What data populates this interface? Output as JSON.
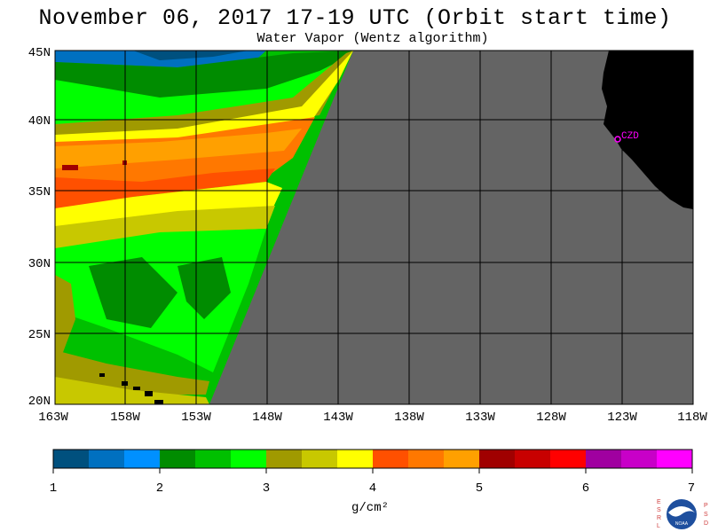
{
  "header": {
    "title": "November 06, 2017  17-19 UTC  (Orbit start time)",
    "subtitle": "Water Vapor (Wentz algorithm)"
  },
  "map": {
    "lat_labels": [
      "45N",
      "40N",
      "35N",
      "30N",
      "25N",
      "20N"
    ],
    "lon_labels": [
      "163W",
      "158W",
      "153W",
      "148W",
      "143W",
      "138W",
      "133W",
      "128W",
      "123W",
      "118W"
    ],
    "station_label": "CZD",
    "station_color": "#ff00ff",
    "nodata_color": "#646464",
    "land_color": "#000000"
  },
  "colorbar": {
    "colors": [
      "#00507e",
      "#0070c0",
      "#0090ff",
      "#008c00",
      "#00c000",
      "#00ff00",
      "#a09a00",
      "#c8c800",
      "#ffff00",
      "#ff5000",
      "#ff7800",
      "#ffa000",
      "#a00000",
      "#c80000",
      "#ff0000",
      "#a000a0",
      "#c800c8",
      "#ff00ff"
    ],
    "tick_labels": [
      "1",
      "2",
      "3",
      "4",
      "5",
      "6",
      "7"
    ],
    "unit": "g/cm²"
  },
  "logo": {
    "left_letters": "ESRL",
    "right_letters": "PSD",
    "center_text": "NOAA"
  }
}
